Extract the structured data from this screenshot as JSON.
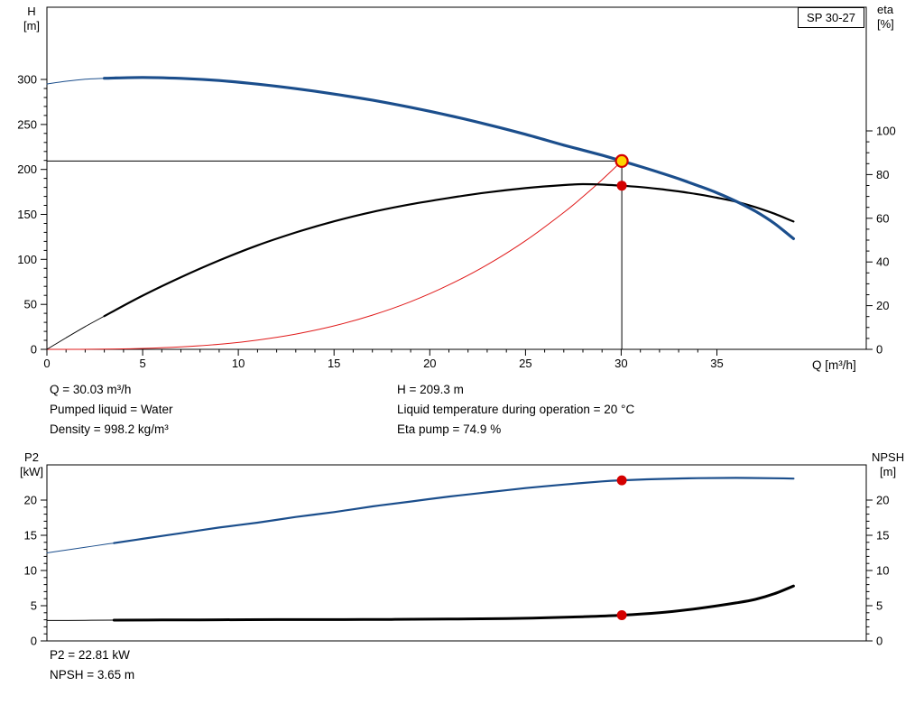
{
  "title_box": "SP 30-27",
  "top_chart": {
    "y_left_label": [
      "H",
      "[m]"
    ],
    "y_right_label": [
      "eta",
      "[%]"
    ],
    "x_label": "Q [m³/h]",
    "info_left": [
      "Q = 30.03 m³/h",
      "Pumped liquid = Water",
      "Density = 998.2 kg/m³"
    ],
    "info_right": [
      "H = 209.3 m",
      "Liquid temperature during operation = 20 °C",
      "Eta pump = 74.9 %"
    ]
  },
  "bottom_chart": {
    "y_left_label": [
      "P2",
      "[kW]"
    ],
    "y_right_label": [
      "NPSH",
      "[m]"
    ],
    "info": [
      "P2 = 22.81 kW",
      "NPSH = 3.65 m"
    ]
  },
  "operating_point": {
    "q_m3h": 30.03,
    "h_m": 209.3,
    "eta_pct": 74.9,
    "p2_kw": 22.81,
    "npsh_m": 3.65
  },
  "colors": {
    "blue": "#1b4e8c",
    "black": "#000000",
    "red": "#e01b1b",
    "duty_fill": "#ffd400",
    "duty_ring": "#d40000"
  },
  "chart_data": [
    {
      "id": "hq",
      "type": "line",
      "title": "SP 30-27",
      "x_axis": {
        "min": 0,
        "max": 42.8,
        "major": 5,
        "minor": 1,
        "tick_max": 35,
        "label": "Q [m³/h]"
      },
      "left_axis": {
        "min": 0,
        "max": 380.3,
        "major": 50,
        "minor": 10,
        "tick_max": 300,
        "label": "H [m]"
      },
      "right_axis": {
        "min": 0,
        "max": 156.6,
        "major": 20,
        "minor": 5,
        "tick_max": 100,
        "label": "eta [%]"
      },
      "series": [
        {
          "name": "system-curve",
          "axis": "left",
          "color": "red",
          "width": 1,
          "points": [
            [
              0,
              0
            ],
            [
              3,
              0.2
            ],
            [
              5,
              1
            ],
            [
              7,
              2.7
            ],
            [
              9,
              5.6
            ],
            [
              11,
              10.3
            ],
            [
              13,
              17
            ],
            [
              15,
              26.1
            ],
            [
              17,
              38
            ],
            [
              19,
              53
            ],
            [
              21,
              71.6
            ],
            [
              23,
              94
            ],
            [
              25,
              120.7
            ],
            [
              27,
              152.1
            ],
            [
              28,
              169.7
            ],
            [
              29,
              188.5
            ],
            [
              30.03,
              209.3
            ]
          ]
        },
        {
          "name": "eta-curve-lead-in",
          "axis": "right",
          "color": "black",
          "width": 0.9,
          "points": [
            [
              0,
              0
            ],
            [
              1,
              5.3
            ],
            [
              2,
              10.4
            ],
            [
              3,
              15.2
            ]
          ]
        },
        {
          "name": "eta-curve",
          "axis": "right",
          "color": "black",
          "width": 2.2,
          "points": [
            [
              3,
              15.2
            ],
            [
              5,
              24.6
            ],
            [
              7,
              33
            ],
            [
              9,
              40.7
            ],
            [
              11,
              47.6
            ],
            [
              13,
              53.5
            ],
            [
              15,
              58.6
            ],
            [
              17,
              62.9
            ],
            [
              19,
              66.4
            ],
            [
              21,
              69.3
            ],
            [
              23,
              71.8
            ],
            [
              25,
              73.8
            ],
            [
              27,
              75.2
            ],
            [
              28,
              75.6
            ],
            [
              29,
              75.4
            ],
            [
              30.03,
              74.9
            ],
            [
              31,
              74.3
            ],
            [
              32,
              73.4
            ],
            [
              33,
              72.3
            ],
            [
              34,
              71
            ],
            [
              35,
              69.4
            ],
            [
              36,
              67.6
            ],
            [
              37,
              65.1
            ],
            [
              38,
              62.1
            ],
            [
              39,
              58.5
            ]
          ]
        },
        {
          "name": "head-curve-lead-in",
          "axis": "left",
          "color": "blue",
          "width": 1,
          "points": [
            [
              0,
              295
            ],
            [
              1,
              298
            ],
            [
              2,
              300.3
            ],
            [
              3,
              301.3
            ]
          ]
        },
        {
          "name": "head-curve",
          "axis": "left",
          "color": "blue",
          "width": 3.2,
          "points": [
            [
              3,
              301.3
            ],
            [
              5,
              302.2
            ],
            [
              7,
              301.2
            ],
            [
              9,
              298.8
            ],
            [
              11,
              294.8
            ],
            [
              13,
              289.8
            ],
            [
              15,
              283.8
            ],
            [
              17,
              277
            ],
            [
              19,
              269
            ],
            [
              21,
              260
            ],
            [
              23,
              250
            ],
            [
              25,
              239
            ],
            [
              27,
              227
            ],
            [
              29,
              215.8
            ],
            [
              30.03,
              209.3
            ],
            [
              31,
              203.2
            ],
            [
              32,
              196.6
            ],
            [
              33,
              189.6
            ],
            [
              34,
              182
            ],
            [
              35,
              174
            ],
            [
              36,
              164.6
            ],
            [
              37,
              153.6
            ],
            [
              38,
              140
            ],
            [
              39,
              123
            ]
          ]
        }
      ],
      "crosshair": {
        "x": 30.03,
        "y": 209.3,
        "axis": "left"
      },
      "markers": [
        {
          "name": "duty-point",
          "x": 30.03,
          "y": 209.3,
          "axis": "left",
          "r": 6.5,
          "fill": "duty_fill",
          "stroke": "duty_ring",
          "stroke_width": 2.2
        },
        {
          "name": "eta-point",
          "x": 30.03,
          "y": 74.9,
          "axis": "right",
          "r": 5.5,
          "fill": "duty_ring"
        }
      ]
    },
    {
      "id": "p2",
      "type": "line",
      "x_axis": {
        "min": 0,
        "max": 42.8,
        "ticks": false
      },
      "left_axis": {
        "min": 0,
        "max": 25,
        "major": 5,
        "minor": 1,
        "tick_max": 20,
        "label": "P2 [kW]"
      },
      "right_axis": {
        "min": 0,
        "max": 25,
        "major": 5,
        "minor": 1,
        "tick_max": 20,
        "label": "NPSH [m]"
      },
      "series": [
        {
          "name": "p2-curve-lead-in",
          "axis": "left",
          "color": "blue",
          "width": 1,
          "points": [
            [
              0,
              12.5
            ],
            [
              1,
              12.9
            ],
            [
              2,
              13.3
            ],
            [
              3,
              13.7
            ],
            [
              3.5,
              13.9
            ]
          ]
        },
        {
          "name": "p2-curve",
          "axis": "left",
          "color": "blue",
          "width": 2.2,
          "points": [
            [
              3.5,
              13.9
            ],
            [
              5,
              14.5
            ],
            [
              7,
              15.3
            ],
            [
              9,
              16.1
            ],
            [
              11,
              16.8
            ],
            [
              13,
              17.6
            ],
            [
              15,
              18.3
            ],
            [
              17,
              19.1
            ],
            [
              19,
              19.8
            ],
            [
              21,
              20.5
            ],
            [
              23,
              21.1
            ],
            [
              25,
              21.7
            ],
            [
              27,
              22.2
            ],
            [
              29,
              22.65
            ],
            [
              30.03,
              22.81
            ],
            [
              32,
              23
            ],
            [
              34,
              23.12
            ],
            [
              36,
              23.15
            ],
            [
              38,
              23.1
            ],
            [
              39,
              23.05
            ]
          ]
        },
        {
          "name": "npsh-curve-lead-in",
          "axis": "right",
          "color": "black",
          "width": 1,
          "points": [
            [
              0,
              2.9
            ],
            [
              2,
              2.92
            ],
            [
              3.5,
              2.95
            ]
          ]
        },
        {
          "name": "npsh-curve",
          "axis": "right",
          "color": "black",
          "width": 3,
          "points": [
            [
              3.5,
              2.95
            ],
            [
              6,
              2.97
            ],
            [
              9,
              3
            ],
            [
              12,
              3.02
            ],
            [
              15,
              3.03
            ],
            [
              18,
              3.05
            ],
            [
              21,
              3.1
            ],
            [
              24,
              3.18
            ],
            [
              26,
              3.28
            ],
            [
              28,
              3.44
            ],
            [
              30.03,
              3.65
            ],
            [
              32,
              4
            ],
            [
              34,
              4.6
            ],
            [
              36,
              5.4
            ],
            [
              37,
              5.9
            ],
            [
              38,
              6.7
            ],
            [
              39,
              7.8
            ]
          ]
        }
      ],
      "markers": [
        {
          "name": "p2-point",
          "x": 30.03,
          "y": 22.81,
          "axis": "left",
          "r": 5.5,
          "fill": "duty_ring"
        },
        {
          "name": "npsh-point",
          "x": 30.03,
          "y": 3.65,
          "axis": "right",
          "r": 5.5,
          "fill": "duty_ring"
        }
      ]
    }
  ]
}
